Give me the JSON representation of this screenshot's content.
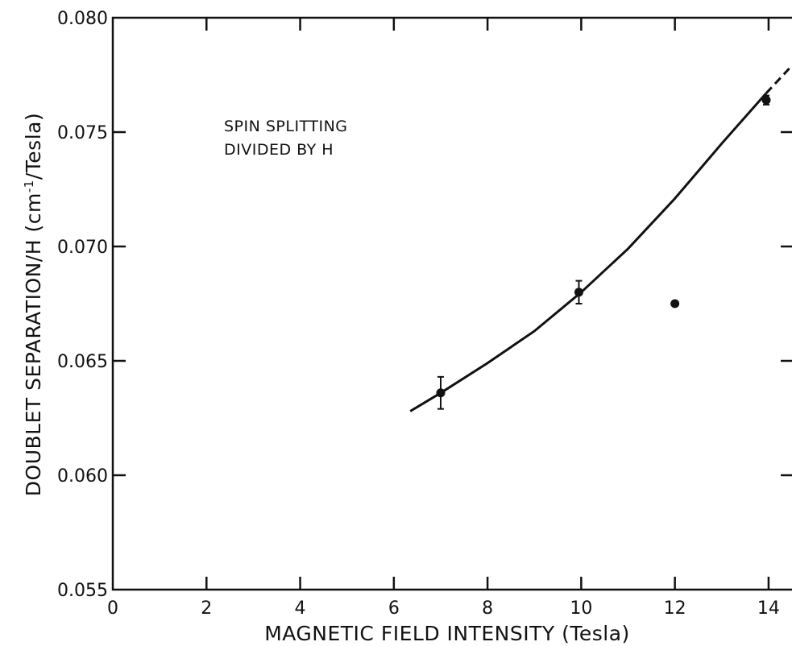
{
  "chart_data": {
    "type": "scatter",
    "xlabel": "MAGNETIC FIELD INTENSITY (Tesla)",
    "ylabel_main": "DOUBLET SEPARATION/H (cm",
    "ylabel_sup": "-1",
    "ylabel_tail": "/Tesla)",
    "annotation": [
      "SPIN SPLITTING",
      "DIVIDED BY H"
    ],
    "xlim": [
      0,
      14.5
    ],
    "ylim": [
      0.055,
      0.08
    ],
    "x_ticks": [
      {
        "value": 0,
        "label": "0"
      },
      {
        "value": 2,
        "label": "2"
      },
      {
        "value": 4,
        "label": "4"
      },
      {
        "value": 6,
        "label": "6"
      },
      {
        "value": 8,
        "label": "8"
      },
      {
        "value": 10,
        "label": "10"
      },
      {
        "value": 12,
        "label": "12"
      },
      {
        "value": 14,
        "label": "14"
      }
    ],
    "y_ticks": [
      {
        "value": 0.055,
        "label": "0.055"
      },
      {
        "value": 0.06,
        "label": "0.060"
      },
      {
        "value": 0.065,
        "label": "0.065"
      },
      {
        "value": 0.07,
        "label": "0.070"
      },
      {
        "value": 0.075,
        "label": "0.075"
      },
      {
        "value": 0.08,
        "label": "0.080"
      }
    ],
    "points": [
      {
        "x": 7.0,
        "y": 0.0636,
        "err": 0.0007
      },
      {
        "x": 9.95,
        "y": 0.068,
        "err": 0.0005
      },
      {
        "x": 12.0,
        "y": 0.0675,
        "err": 0
      },
      {
        "x": 13.95,
        "y": 0.0764,
        "err": 0.0002
      }
    ],
    "fit_curve": {
      "x": [
        6.35,
        7.0,
        8.0,
        9.0,
        10.0,
        11.0,
        12.0,
        13.0,
        13.95,
        14.45
      ],
      "y": [
        0.0628,
        0.0636,
        0.0649,
        0.0663,
        0.068,
        0.0699,
        0.0721,
        0.0745,
        0.0767,
        0.0778
      ],
      "dash_from_x": 14.05
    },
    "grid": false
  }
}
